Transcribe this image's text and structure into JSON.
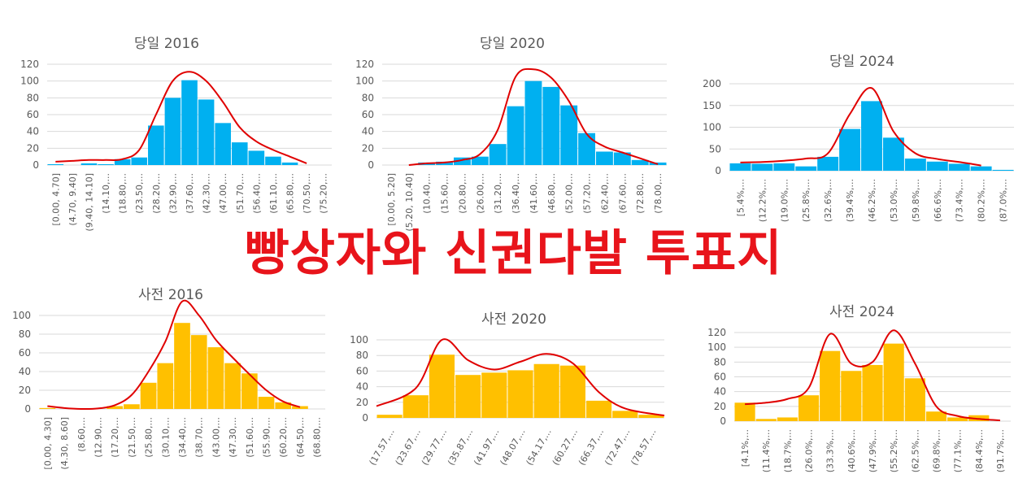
{
  "headline": "빵상자와 신권다발 투표지",
  "colors": {
    "election_day": "#00b0f0",
    "early": "#ffc000",
    "curve": "#e00000",
    "headline": "#e8141b"
  },
  "chart_data": [
    {
      "type": "bar",
      "title": "당일 2016",
      "ylim": [
        0,
        120
      ],
      "ystep": 20,
      "grid": true,
      "color": "#00b0f0",
      "categories": [
        "[0.00, 4.70]",
        "(4.70, 9.40]",
        "(9.40, 14.10]",
        "(14.10,...",
        "(18.80,...",
        "(23.50,...",
        "(28.20,...",
        "(32.90,...",
        "(37.60,...",
        "(42.30,...",
        "(47.00,...",
        "(51.70,...",
        "(56.40,...",
        "(61.10,...",
        "(65.80,...",
        "(70.50,...",
        "(75.20,..."
      ],
      "values": [
        1,
        0,
        2,
        1,
        7,
        9,
        47,
        80,
        101,
        78,
        50,
        27,
        17,
        10,
        3,
        0,
        0
      ],
      "curve": [
        4,
        5,
        6,
        6,
        7,
        18,
        60,
        100,
        111,
        100,
        75,
        45,
        28,
        18,
        10,
        2
      ]
    },
    {
      "type": "bar",
      "title": "당일 2020",
      "ylim": [
        0,
        120
      ],
      "ystep": 20,
      "grid": true,
      "color": "#00b0f0",
      "categories": [
        "[0.00, 5.20]",
        "(5.20, 10.40]",
        "(10.40,...",
        "(15.60,...",
        "(20.80,...",
        "(26.00,...",
        "(31.20,...",
        "(36.40,...",
        "(41.60,...",
        "(46.80,...",
        "(52.00,...",
        "(57.20,...",
        "(62.40,...",
        "(67.60,...",
        "(72.80,...",
        "(78.00,..."
      ],
      "values": [
        0,
        0,
        3,
        4,
        9,
        10,
        25,
        70,
        100,
        93,
        71,
        38,
        16,
        15,
        6,
        3
      ],
      "curve": [
        null,
        0,
        2,
        3,
        6,
        13,
        42,
        105,
        114,
        104,
        76,
        37,
        22,
        15,
        8,
        1
      ]
    },
    {
      "type": "bar",
      "title": "당일 2024",
      "ylim": [
        0,
        200
      ],
      "ystep": 50,
      "grid": true,
      "color": "#00b0f0",
      "categories": [
        "[5.4%,...",
        "(12.2%,...",
        "(19.0%,...",
        "(25.8%,...",
        "(32.6%,...",
        "(39.4%,...",
        "(46.2%,...",
        "(53.0%,...",
        "(59.8%,...",
        "(66.6%,...",
        "(73.4%,...",
        "(80.2%,...",
        "(87.0%,..."
      ],
      "values": [
        17,
        16,
        17,
        10,
        32,
        96,
        160,
        76,
        28,
        21,
        16,
        10,
        2
      ],
      "curve": [
        19,
        20,
        23,
        28,
        40,
        130,
        190,
        90,
        40,
        27,
        20,
        12
      ]
    },
    {
      "type": "bar",
      "title": "사전 2016",
      "ylim": [
        0,
        100
      ],
      "ystep": 20,
      "grid": true,
      "color": "#ffc000",
      "categories": [
        "[0.00, 4.30]",
        "(4.30, 8.60]",
        "(8.60,...",
        "(12.90,...",
        "(17.20,...",
        "(21.50,...",
        "(25.80,...",
        "(30.10,...",
        "(34.40,...",
        "(38.70,...",
        "(43.00,...",
        "(47.30,...",
        "(51.60,...",
        "(55.90,...",
        "(60.20,...",
        "(64.50,...",
        "(68.80,..."
      ],
      "values": [
        1,
        0,
        0,
        0,
        3,
        5,
        28,
        49,
        92,
        79,
        66,
        49,
        38,
        13,
        7,
        3,
        0
      ],
      "curve": [
        3,
        1,
        0,
        0.5,
        4,
        15,
        40,
        72,
        115,
        100,
        74,
        55,
        37,
        20,
        8,
        2
      ]
    },
    {
      "type": "bar",
      "title": "사전 2020",
      "ylim": [
        0,
        100
      ],
      "ystep": 20,
      "grid": true,
      "color": "#ffc000",
      "label_angle": -45,
      "categories": [
        "(17.57,...",
        "(23.67,...",
        "(29.77,...",
        "(35.87,...",
        "(41.97,...",
        "(48.07,...",
        "(54.17,...",
        "(60.27,...",
        "(66.37,...",
        "(72.47,...",
        "(78.57,..."
      ],
      "values": [
        4,
        29,
        81,
        55,
        58,
        61,
        69,
        67,
        22,
        9,
        4
      ],
      "curve": [
        15,
        38,
        100,
        74,
        62,
        72,
        82,
        70,
        33,
        12,
        3
      ]
    },
    {
      "type": "bar",
      "title": "사전 2024",
      "ylim": [
        0,
        120
      ],
      "ystep": 20,
      "grid": true,
      "color": "#ffc000",
      "categories": [
        "[4.1%,...",
        "(11.4%,...",
        "(18.7%,...",
        "(26.0%,...",
        "(33.3%,...",
        "(40.6%,...",
        "(47.9%,...",
        "(55.2%,...",
        "(62.5%,...",
        "(69.8%,...",
        "(77.1%,...",
        "(84.4%,...",
        "(91.7%,..."
      ],
      "values": [
        25,
        3,
        5,
        35,
        95,
        68,
        76,
        105,
        58,
        13,
        5,
        8,
        0
      ],
      "curve": [
        23,
        25,
        30,
        45,
        118,
        78,
        80,
        123,
        78,
        20,
        7,
        3,
        1
      ]
    }
  ]
}
